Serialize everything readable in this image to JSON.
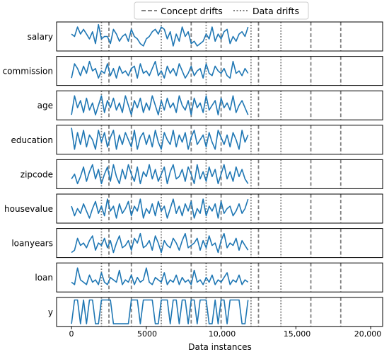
{
  "chart_data": {
    "type": "line",
    "xlabel": "Data instances",
    "xlim": [
      -1000,
      20800
    ],
    "xticks": [
      {
        "value": 0,
        "label": "0"
      },
      {
        "value": 5000,
        "label": "5000"
      },
      {
        "value": 10000,
        "label": "10,000"
      },
      {
        "value": 15000,
        "label": "15,000"
      },
      {
        "value": 20000,
        "label": "20,000"
      }
    ],
    "legend": {
      "position": "top-center",
      "items": [
        {
          "label": "Concept drifts",
          "style": "dashed"
        },
        {
          "label": "Data drifts",
          "style": "dotted"
        }
      ]
    },
    "line_color": "#1f77b4",
    "drift_color": "#808080",
    "concept_drifts": [
      2500,
      4000,
      8000,
      10000,
      12500,
      16000,
      18000
    ],
    "data_drifts": [
      2000,
      6000,
      9000,
      12000,
      14000
    ],
    "x_start": 0,
    "x_step": 200,
    "series": [
      {
        "name": "salary",
        "values": [
          0.6,
          0.5,
          0.9,
          0.6,
          0.8,
          0.6,
          0.4,
          0.7,
          0.2,
          1.0,
          0.4,
          0.5,
          0.5,
          0.2,
          0.8,
          0.6,
          0.3,
          0.5,
          0.6,
          0.3,
          0.8,
          0.5,
          0.4,
          0.2,
          0.1,
          0.4,
          0.5,
          0.7,
          0.8,
          0.6,
          0.9,
          0.8,
          0.4,
          0.7,
          0.1,
          0.6,
          0.3,
          0.9,
          0.5,
          0.7,
          0.2,
          0.3,
          0.1,
          0.2,
          0.3,
          0.6,
          0.4,
          0.9,
          0.3,
          0.6,
          0.4,
          0.7,
          0.8,
          0.2,
          0.5,
          0.3,
          0.6,
          0.7,
          0.5,
          0.9
        ]
      },
      {
        "name": "commission",
        "values": [
          0.2,
          0.8,
          0.6,
          0.3,
          0.7,
          0.4,
          0.9,
          0.5,
          0.6,
          0.2,
          0.5,
          0.4,
          0.8,
          0.3,
          0.6,
          0.2,
          0.7,
          0.4,
          0.5,
          0.3,
          0.6,
          0.7,
          0.2,
          0.8,
          0.4,
          0.5,
          0.3,
          0.6,
          0.9,
          0.3,
          0.5,
          0.2,
          0.7,
          0.4,
          0.6,
          0.3,
          0.8,
          0.5,
          0.2,
          0.4,
          0.7,
          0.3,
          0.5,
          0.6,
          0.2,
          0.8,
          0.4,
          0.3,
          0.7,
          0.5,
          0.4,
          0.6,
          0.3,
          0.2,
          0.9,
          0.4,
          0.5,
          0.3,
          0.6,
          0.4
        ]
      },
      {
        "name": "age",
        "values": [
          0.1,
          0.9,
          0.4,
          0.7,
          0.2,
          0.8,
          0.3,
          0.6,
          0.1,
          0.5,
          0.9,
          0.2,
          0.7,
          0.4,
          0.8,
          0.3,
          0.6,
          0.2,
          0.9,
          0.5,
          0.1,
          0.7,
          0.4,
          0.8,
          0.2,
          0.6,
          0.3,
          0.9,
          0.5,
          0.1,
          0.7,
          0.3,
          0.8,
          0.4,
          0.6,
          0.2,
          0.9,
          0.5,
          0.3,
          0.7,
          0.1,
          0.8,
          0.4,
          0.6,
          0.2,
          0.9,
          0.3,
          0.5,
          0.7,
          0.1,
          0.8,
          0.4,
          0.6,
          0.3,
          0.9,
          0.2,
          0.5,
          0.7,
          0.4,
          0.1
        ]
      },
      {
        "name": "education",
        "values": [
          1.0,
          0.1,
          0.8,
          0.3,
          0.9,
          0.2,
          0.7,
          0.5,
          0.1,
          0.9,
          0.4,
          0.8,
          0.2,
          0.6,
          0.9,
          0.1,
          0.7,
          0.3,
          0.8,
          0.5,
          0.2,
          0.9,
          0.1,
          0.6,
          0.8,
          0.3,
          0.7,
          0.2,
          0.9,
          0.4,
          0.1,
          0.8,
          0.5,
          0.3,
          0.9,
          0.2,
          0.7,
          0.4,
          0.8,
          0.1,
          0.6,
          0.9,
          0.3,
          0.5,
          0.7,
          0.2,
          0.8,
          0.4,
          0.1,
          0.9,
          0.6,
          0.3,
          0.7,
          0.2,
          0.8,
          0.5,
          0.1,
          0.9,
          0.4,
          0.7
        ]
      },
      {
        "name": "zipcode",
        "values": [
          0.3,
          0.5,
          0.1,
          0.4,
          0.8,
          0.2,
          0.6,
          0.9,
          0.3,
          0.7,
          0.1,
          0.5,
          0.8,
          0.2,
          0.9,
          0.4,
          0.1,
          0.7,
          0.3,
          0.9,
          0.5,
          0.2,
          0.8,
          0.1,
          0.6,
          0.4,
          0.9,
          0.3,
          0.7,
          0.2,
          0.5,
          0.8,
          0.1,
          0.6,
          0.9,
          0.3,
          0.4,
          0.7,
          0.2,
          0.8,
          0.5,
          0.1,
          0.9,
          0.3,
          0.6,
          0.2,
          0.8,
          0.4,
          0.7,
          0.1,
          0.5,
          0.9,
          0.3,
          0.6,
          0.2,
          0.8,
          0.4,
          0.7,
          0.3,
          0.1
        ]
      },
      {
        "name": "housevalue",
        "values": [
          0.6,
          0.2,
          0.5,
          0.3,
          0.7,
          0.4,
          0.1,
          0.5,
          0.8,
          0.3,
          0.6,
          0.2,
          0.9,
          0.4,
          0.6,
          0.1,
          0.7,
          0.3,
          0.5,
          0.8,
          0.2,
          0.6,
          0.4,
          0.9,
          0.1,
          0.5,
          0.3,
          0.7,
          0.2,
          0.8,
          0.4,
          0.6,
          0.1,
          0.5,
          0.9,
          0.3,
          0.6,
          0.2,
          0.7,
          0.4,
          0.8,
          0.1,
          0.5,
          0.3,
          0.9,
          0.2,
          0.6,
          0.4,
          0.7,
          0.1,
          0.8,
          0.3,
          0.5,
          0.6,
          0.2,
          0.4,
          0.7,
          0.3,
          0.5,
          0.9
        ]
      },
      {
        "name": "loanyears",
        "values": [
          0.1,
          0.2,
          0.7,
          0.4,
          0.5,
          0.3,
          0.6,
          0.8,
          0.2,
          0.5,
          0.4,
          0.7,
          0.3,
          0.6,
          0.1,
          0.5,
          0.8,
          0.3,
          0.4,
          0.6,
          0.2,
          0.7,
          0.5,
          0.9,
          0.3,
          0.4,
          0.6,
          0.2,
          0.8,
          0.5,
          0.1,
          0.6,
          0.4,
          0.3,
          0.7,
          0.5,
          0.2,
          0.6,
          0.9,
          0.3,
          0.4,
          0.5,
          0.7,
          0.2,
          0.6,
          0.3,
          0.8,
          0.4,
          0.5,
          0.1,
          0.6,
          0.9,
          0.3,
          0.5,
          0.4,
          0.7,
          0.2,
          0.6,
          0.4,
          0.2
        ]
      },
      {
        "name": "loan",
        "values": [
          0.3,
          0.2,
          0.9,
          0.4,
          0.3,
          0.2,
          0.6,
          0.3,
          0.4,
          0.2,
          0.7,
          0.3,
          0.2,
          0.5,
          0.4,
          0.3,
          0.8,
          0.2,
          0.4,
          0.3,
          0.6,
          0.2,
          0.5,
          0.3,
          0.4,
          0.9,
          0.3,
          0.2,
          0.5,
          0.4,
          0.3,
          0.7,
          0.2,
          0.4,
          0.3,
          0.6,
          0.2,
          0.5,
          0.3,
          0.4,
          0.2,
          0.8,
          0.3,
          0.4,
          0.2,
          0.5,
          0.3,
          0.6,
          0.2,
          0.4,
          0.3,
          0.5,
          0.7,
          0.2,
          0.4,
          0.3,
          0.6,
          0.2,
          0.4,
          0.3
        ]
      },
      {
        "name": "y",
        "values": [
          0,
          1,
          1,
          0,
          1,
          0,
          1,
          1,
          0,
          0,
          1,
          1,
          1,
          1,
          0,
          0,
          0,
          0,
          0,
          0,
          1,
          1,
          1,
          0,
          1,
          1,
          1,
          1,
          0,
          0,
          1,
          1,
          1,
          0,
          1,
          1,
          0,
          1,
          1,
          0,
          1,
          1,
          0,
          1,
          1,
          1,
          0,
          0,
          1,
          0,
          1,
          1,
          0,
          1,
          1,
          1,
          1,
          0,
          0,
          1
        ]
      }
    ]
  }
}
